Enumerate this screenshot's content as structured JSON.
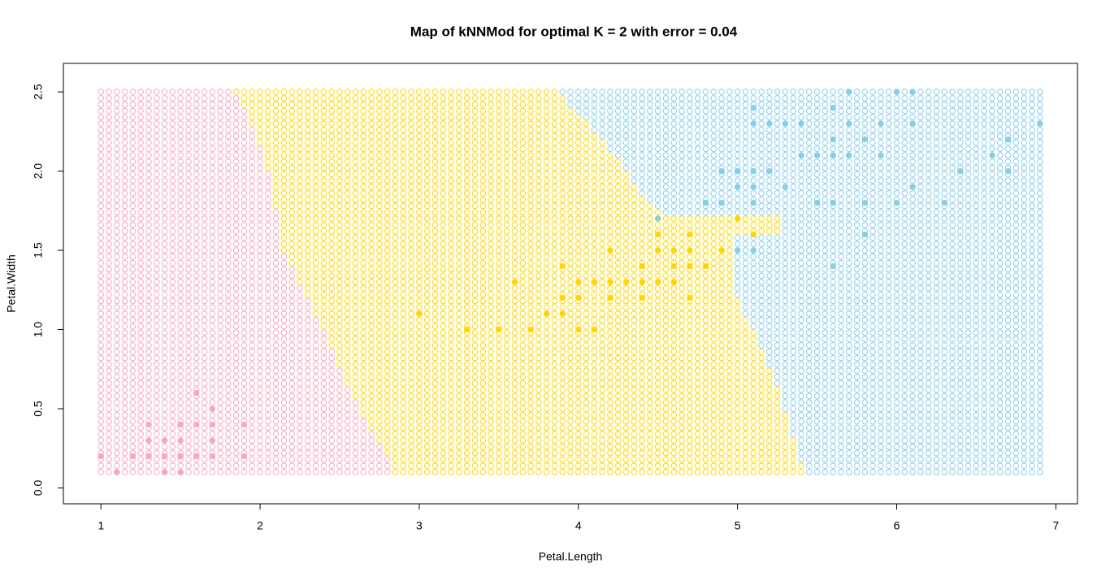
{
  "chart_data": {
    "type": "knn-map",
    "title": "Map of kNNMod for optimal K = 2 with error = 0.04",
    "x_label": "Petal.Length",
    "y_label": "Petal.Width",
    "xlim": [
      0.764,
      7.136
    ],
    "ylim": [
      -0.1,
      2.68
    ],
    "xticks": [
      1,
      2,
      3,
      4,
      5,
      6,
      7
    ],
    "yticks": [
      {
        "value": 0,
        "label": "0.0"
      },
      0.5,
      {
        "value": 1,
        "label": "1.0"
      },
      1.5,
      {
        "value": 2,
        "label": "2.0"
      },
      2.5
    ],
    "grid": {
      "colors": [
        "#f7a8bd",
        "#ffd700",
        "#87ceeb"
      ],
      "x": [
        1,
        1.05,
        1.1,
        1.15,
        1.2,
        1.25,
        1.3,
        1.35,
        1.4,
        1.45,
        1.5,
        1.55,
        1.6,
        1.65,
        1.7,
        1.75,
        1.8,
        1.85,
        1.9,
        1.95,
        2,
        2.05,
        2.1,
        2.15,
        2.2,
        2.25,
        2.3,
        2.35,
        2.4,
        2.45,
        2.5,
        2.55,
        2.6,
        2.65,
        2.7,
        2.75,
        2.8,
        2.85,
        2.9,
        2.95,
        3,
        3.05,
        3.1,
        3.15,
        3.2,
        3.25,
        3.3,
        3.35,
        3.4,
        3.45,
        3.5,
        3.55,
        3.6,
        3.65,
        3.7,
        3.75,
        3.8,
        3.85,
        3.9,
        3.95,
        4,
        4.05,
        4.1,
        4.15,
        4.2,
        4.25,
        4.3,
        4.35,
        4.4,
        4.45,
        4.5,
        4.55,
        4.6,
        4.65,
        4.7,
        4.75,
        4.8,
        4.85,
        4.9,
        4.95,
        5,
        5.05,
        5.1,
        5.15,
        5.2,
        5.25,
        5.3,
        5.35,
        5.4,
        5.45,
        5.5,
        5.55,
        5.6,
        5.65,
        5.7,
        5.75,
        5.8,
        5.85,
        5.9,
        5.95,
        6,
        6.05,
        6.1,
        6.15,
        6.2,
        6.25,
        6.3,
        6.35,
        6.4,
        6.45,
        6.5,
        6.55,
        6.6,
        6.65,
        6.7,
        6.75,
        6.8,
        6.85,
        6.9
      ],
      "y": [
        0.1,
        0.14,
        0.18,
        0.22,
        0.26,
        0.3,
        0.34,
        0.38,
        0.42,
        0.46,
        0.5,
        0.54,
        0.58,
        0.62,
        0.66,
        0.7,
        0.74,
        0.78,
        0.82,
        0.86,
        0.9,
        0.94,
        0.98,
        1.02,
        1.06,
        1.1,
        1.14,
        1.18,
        1.22,
        1.26,
        1.3,
        1.34,
        1.38,
        1.42,
        1.46,
        1.5,
        1.54,
        1.58,
        1.62,
        1.66,
        1.7,
        1.74,
        1.78,
        1.82,
        1.86,
        1.9,
        1.94,
        1.98,
        2.02,
        2.06,
        2.1,
        2.14,
        2.18,
        2.22,
        2.26,
        2.3,
        2.34,
        2.38,
        2.42,
        2.46,
        2.5
      ],
      "edge1": {
        "y": [
          0.1,
          0.5,
          1.0,
          1.5,
          2.0,
          2.3,
          2.5
        ],
        "x": [
          2.85,
          2.62,
          2.4,
          2.15,
          2.05,
          1.95,
          1.85
        ]
      },
      "edge2": {
        "y": [
          0.1,
          0.5,
          1.0,
          1.2,
          1.58,
          1.62,
          1.7,
          1.74,
          1.8,
          2.0,
          2.2,
          2.4,
          2.5
        ],
        "x": [
          5.42,
          5.3,
          5.1,
          5.0,
          5.0,
          5.3,
          5.3,
          4.55,
          4.42,
          4.3,
          4.15,
          3.95,
          3.88
        ]
      }
    },
    "series": [
      {
        "color": "#f7a8bd",
        "x": [
          1.4,
          1.4,
          1.3,
          1.5,
          1.4,
          1.7,
          1.4,
          1.5,
          1.4,
          1.5,
          1.5,
          1.6,
          1.4,
          1.1,
          1.2,
          1.5,
          1.3,
          1.4,
          1.7,
          1.5,
          1.7,
          1.5,
          1.0,
          1.7,
          1.9,
          1.6,
          1.6,
          1.5,
          1.4,
          1.6,
          1.6,
          1.5,
          1.5,
          1.4,
          1.5,
          1.2,
          1.3,
          1.4,
          1.3,
          1.5,
          1.3,
          1.3,
          1.3,
          1.6,
          1.9,
          1.4,
          1.6,
          1.4,
          1.5,
          1.4
        ],
        "y": [
          0.2,
          0.2,
          0.2,
          0.2,
          0.2,
          0.4,
          0.3,
          0.2,
          0.2,
          0.1,
          0.2,
          0.2,
          0.1,
          0.1,
          0.2,
          0.4,
          0.4,
          0.3,
          0.3,
          0.3,
          0.2,
          0.4,
          0.2,
          0.5,
          0.2,
          0.2,
          0.4,
          0.2,
          0.2,
          0.2,
          0.2,
          0.4,
          0.1,
          0.2,
          0.2,
          0.2,
          0.2,
          0.1,
          0.2,
          0.2,
          0.3,
          0.3,
          0.2,
          0.6,
          0.4,
          0.3,
          0.2,
          0.2,
          0.2,
          0.2
        ]
      },
      {
        "color": "#ffd700",
        "x": [
          4.7,
          4.5,
          4.9,
          4.0,
          4.6,
          4.5,
          4.7,
          3.3,
          4.6,
          3.9,
          3.5,
          4.2,
          4.0,
          4.7,
          3.6,
          4.4,
          4.5,
          4.1,
          4.5,
          3.9,
          4.8,
          4.0,
          4.9,
          4.7,
          4.3,
          4.4,
          4.8,
          5.0,
          4.5,
          3.5,
          3.8,
          3.7,
          3.9,
          5.1,
          4.5,
          4.5,
          4.7,
          4.4,
          4.1,
          4.0,
          4.4,
          4.6,
          4.0,
          3.3,
          4.2,
          4.2,
          4.2,
          4.3,
          3.0,
          4.1
        ],
        "y": [
          1.4,
          1.5,
          1.5,
          1.3,
          1.5,
          1.3,
          1.6,
          1.0,
          1.3,
          1.4,
          1.0,
          1.5,
          1.0,
          1.4,
          1.3,
          1.4,
          1.5,
          1.0,
          1.5,
          1.1,
          1.8,
          1.3,
          1.5,
          1.2,
          1.3,
          1.4,
          1.4,
          1.7,
          1.5,
          1.0,
          1.1,
          1.0,
          1.2,
          1.6,
          1.5,
          1.6,
          1.5,
          1.3,
          1.3,
          1.3,
          1.2,
          1.4,
          1.2,
          1.0,
          1.3,
          1.2,
          1.3,
          1.3,
          1.1,
          1.3
        ]
      },
      {
        "color": "#87ceeb",
        "x": [
          6.0,
          5.1,
          5.9,
          5.6,
          5.8,
          6.6,
          4.5,
          6.3,
          5.8,
          6.1,
          5.1,
          5.3,
          5.5,
          5.0,
          5.1,
          5.3,
          5.5,
          6.7,
          6.9,
          5.0,
          5.7,
          4.9,
          6.7,
          4.9,
          5.7,
          6.0,
          4.8,
          4.9,
          5.6,
          5.8,
          6.1,
          6.4,
          5.6,
          5.1,
          5.6,
          6.1,
          5.6,
          5.5,
          4.8,
          5.4,
          5.6,
          5.1,
          5.1,
          5.9,
          5.7,
          5.2,
          5.0,
          5.2,
          5.4,
          5.1
        ],
        "y": [
          2.5,
          1.9,
          2.1,
          1.8,
          2.2,
          2.1,
          1.7,
          1.8,
          1.8,
          2.5,
          2.0,
          1.9,
          2.1,
          2.0,
          2.4,
          2.3,
          1.8,
          2.2,
          2.3,
          1.5,
          2.3,
          2.0,
          2.0,
          1.8,
          2.1,
          1.8,
          1.8,
          1.8,
          2.1,
          1.6,
          1.9,
          2.0,
          2.2,
          1.5,
          1.4,
          2.3,
          2.4,
          1.8,
          1.8,
          2.1,
          2.4,
          2.3,
          1.9,
          2.3,
          2.5,
          2.3,
          1.9,
          2.0,
          2.3,
          1.8
        ]
      }
    ]
  }
}
